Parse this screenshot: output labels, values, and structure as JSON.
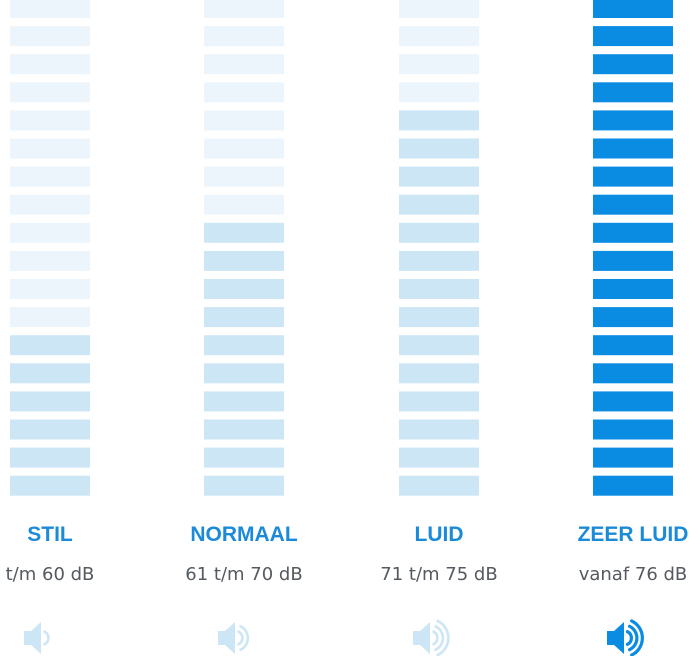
{
  "levels": [
    {
      "title": "STIL",
      "range": "t/m 60 dB"
    },
    {
      "title": "NORMAAL",
      "range": "61 t/m 70 dB"
    },
    {
      "title": "LUID",
      "range": "71 t/m 75 dB"
    },
    {
      "title": "ZEER LUID",
      "range": "vanaf 76 dB"
    }
  ]
}
